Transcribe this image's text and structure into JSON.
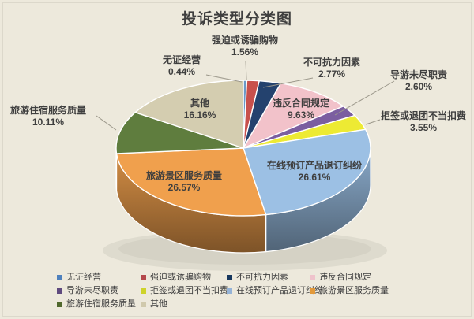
{
  "title": "投诉类型分类图",
  "colors": {
    "background": "#EDE9DC",
    "text": "#3F3F3F",
    "legend_text": "#404040",
    "leader_line": "#9B978A",
    "slice_border": "#FFFFFF"
  },
  "chart_data": {
    "type": "pie",
    "is_3d": true,
    "title": "投诉类型分类图",
    "unit": "%",
    "start_angle_deg": 0,
    "direction": "clockwise",
    "legend_position": "bottom",
    "slices": [
      {
        "label": "无证经营",
        "value": 0.44,
        "pct_label": "0.44%",
        "color": "#6A99C8",
        "legend_color": "#4F81BD",
        "label_placement": "outside"
      },
      {
        "label": "强迫或诱骗购物",
        "value": 1.56,
        "pct_label": "1.56%",
        "color": "#C8504C",
        "legend_color": "#B4484B",
        "label_placement": "outside"
      },
      {
        "label": "不可抗力因素",
        "value": 2.77,
        "pct_label": "2.77%",
        "color": "#24426E",
        "legend_color": "#17375E",
        "label_placement": "outside"
      },
      {
        "label": "违反合同规定",
        "value": 9.63,
        "pct_label": "9.63%",
        "color": "#F2C2CA",
        "legend_color": "#EFC3CB",
        "label_placement": "inside"
      },
      {
        "label": "导游未尽职责",
        "value": 2.6,
        "pct_label": "2.60%",
        "color": "#7B5EA0",
        "legend_color": "#5F4A7E",
        "label_placement": "outside"
      },
      {
        "label": "拒签或退团不当扣费",
        "value": 3.55,
        "pct_label": "3.55%",
        "color": "#EDEA33",
        "legend_color": "#CED32A",
        "label_placement": "outside"
      },
      {
        "label": "在线预订产品退订纠纷",
        "value": 26.61,
        "pct_label": "26.61%",
        "color": "#9CC0E4",
        "legend_color": "#95B3D7",
        "label_placement": "inside"
      },
      {
        "label": "旅游景区服务质量",
        "value": 26.57,
        "pct_label": "26.57%",
        "color": "#F0A04D",
        "legend_color": "#E39A3B",
        "label_placement": "inside"
      },
      {
        "label": "旅游住宿服务质量",
        "value": 10.11,
        "pct_label": "10.11%",
        "color": "#5F7D3E",
        "legend_color": "#50682D",
        "label_placement": "outside"
      },
      {
        "label": "其他",
        "value": 16.16,
        "pct_label": "16.16%",
        "color": "#D4CDB0",
        "legend_color": "#D0C9AC",
        "label_placement": "inside"
      }
    ]
  }
}
